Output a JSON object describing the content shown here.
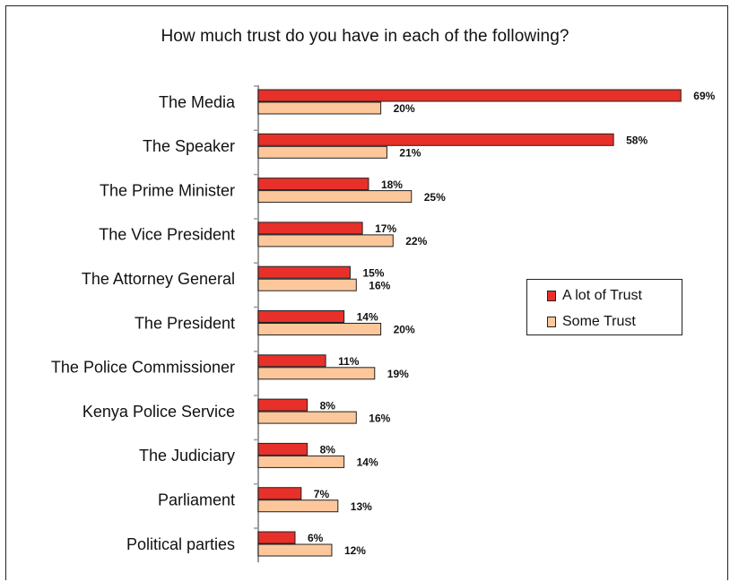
{
  "chart_data": {
    "type": "bar",
    "orientation": "horizontal",
    "title": "How much trust do you have in each of the following?",
    "categories": [
      "The Media",
      "The Speaker",
      "The Prime Minister",
      "The Vice President",
      "The Attorney General",
      "The President",
      "The Police Commissioner",
      "Kenya Police Service",
      "The Judiciary",
      "Parliament",
      "Political parties"
    ],
    "series": [
      {
        "name": "A lot of Trust",
        "color": "#e8302a",
        "values": [
          69,
          58,
          18,
          17,
          15,
          14,
          11,
          8,
          8,
          7,
          6
        ]
      },
      {
        "name": "Some Trust",
        "color": "#fcc89b",
        "values": [
          20,
          21,
          25,
          22,
          16,
          20,
          19,
          16,
          14,
          13,
          12
        ]
      }
    ],
    "value_suffix": "%",
    "xlim": [
      0,
      70
    ],
    "grid": false,
    "legend_position": "right"
  }
}
